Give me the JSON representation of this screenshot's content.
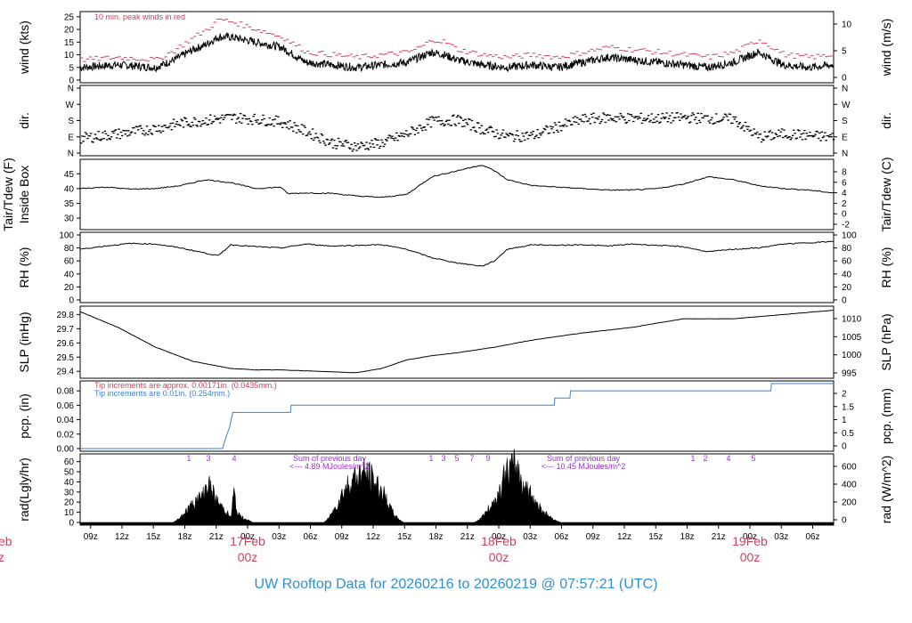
{
  "figure_title": "UW Rooftop Data for 20260216  to  20260219 @ 07:57:21  (UTC)",
  "colors": {
    "red": "#d0405a",
    "blue": "#3d7fcf",
    "purple": "#9a30d8",
    "footer": "#2f8fd4",
    "ink": "#000000"
  },
  "chart_data": [
    {
      "type": "line",
      "panel": "wind",
      "ylabel": "wind (kts)",
      "ylabel_right": "wind (m/s)",
      "ylim": [
        0,
        26
      ],
      "yticks": [
        0,
        5,
        10,
        15,
        20,
        25
      ],
      "yticks_right": [
        0,
        5,
        10
      ],
      "annotation": "10 min. peak winds in red",
      "x_unit": "hours since 16 Feb 08z",
      "series": [
        {
          "name": "wind",
          "color": "#000000",
          "x": [
            0,
            6,
            12,
            15,
            18,
            20,
            22,
            24,
            28,
            32,
            36,
            40,
            44,
            48,
            52,
            54,
            56,
            58,
            60,
            64,
            68,
            72,
            76,
            80,
            84,
            88,
            92,
            96,
            100,
            104,
            108,
            112,
            116,
            120
          ],
          "y": [
            5,
            6,
            5,
            8,
            12,
            14,
            17,
            17,
            15,
            13,
            7,
            6,
            5,
            6,
            7,
            9,
            11,
            10,
            8,
            6,
            5,
            6,
            5,
            7,
            9,
            8,
            7,
            6,
            5,
            7,
            11,
            6,
            5,
            6
          ]
        },
        {
          "name": "peak",
          "color": "#d0405a",
          "x": [
            0,
            6,
            12,
            15,
            18,
            20,
            22,
            24,
            28,
            32,
            36,
            40,
            44,
            48,
            52,
            54,
            56,
            58,
            60,
            64,
            68,
            72,
            76,
            80,
            84,
            88,
            92,
            96,
            100,
            104,
            108,
            112,
            116,
            120
          ],
          "y": [
            8,
            9,
            8,
            12,
            17,
            20,
            24,
            23,
            20,
            17,
            11,
            10,
            9,
            10,
            11,
            13,
            16,
            15,
            12,
            10,
            9,
            10,
            9,
            11,
            13,
            12,
            11,
            10,
            9,
            11,
            16,
            10,
            9,
            10
          ]
        }
      ]
    },
    {
      "type": "scatter",
      "panel": "dir",
      "ylabel": "dir.",
      "ylabel_right": "dir.",
      "yticks": [
        "N",
        "E",
        "S",
        "W",
        "N"
      ],
      "ylim": [
        0,
        360
      ],
      "series": [
        {
          "name": "dir",
          "color": "#000000",
          "x": [
            0,
            6,
            12,
            16,
            20,
            24,
            28,
            32,
            36,
            40,
            44,
            48,
            52,
            56,
            60,
            64,
            68,
            72,
            76,
            80,
            84,
            88,
            92,
            96,
            100,
            104,
            108,
            112,
            116,
            120
          ],
          "y": [
            85,
            110,
            140,
            170,
            185,
            200,
            190,
            175,
            120,
            60,
            40,
            60,
            110,
            180,
            185,
            135,
            95,
            100,
            150,
            190,
            200,
            195,
            195,
            200,
            195,
            190,
            90,
            110,
            100,
            90
          ]
        }
      ]
    },
    {
      "type": "line",
      "panel": "tair",
      "ylabel": "Tair/Tdew (F)",
      "ylabel2": "Inside Box",
      "ylabel_right": "Tair/Tdew (C)",
      "ylim": [
        27,
        49
      ],
      "yticks": [
        30,
        35,
        40,
        45
      ],
      "yticks_right": [
        -2,
        0,
        2,
        4,
        6,
        8
      ],
      "series": [
        {
          "name": "tair",
          "color": "#000000",
          "x": [
            0,
            4,
            8,
            12,
            16,
            20,
            24,
            28,
            32,
            33,
            36,
            40,
            44,
            48,
            52,
            56,
            60,
            64,
            66,
            68,
            72,
            76,
            80,
            84,
            88,
            92,
            96,
            100,
            104,
            108,
            112,
            116,
            120
          ],
          "y": [
            40,
            40.5,
            39.8,
            40,
            41,
            43,
            42,
            40,
            40.5,
            38.3,
            38.5,
            38.4,
            37.5,
            37,
            38,
            44,
            46,
            48,
            46,
            43,
            41,
            40.5,
            40,
            39.5,
            39.5,
            40,
            41.5,
            44,
            43,
            41,
            40,
            39.5,
            38.5
          ]
        }
      ]
    },
    {
      "type": "line",
      "panel": "rh",
      "ylabel": "RH (%)",
      "ylabel_right": "RH (%)",
      "ylim": [
        0,
        100
      ],
      "yticks": [
        0,
        20,
        40,
        60,
        80,
        100
      ],
      "yticks_right": [
        0,
        20,
        40,
        60,
        80,
        100
      ],
      "series": [
        {
          "name": "rh",
          "color": "#000000",
          "x": [
            0,
            4,
            8,
            12,
            16,
            20,
            22,
            24,
            28,
            32,
            36,
            40,
            44,
            48,
            52,
            56,
            60,
            64,
            66,
            68,
            72,
            76,
            80,
            84,
            88,
            92,
            96,
            100,
            104,
            108,
            112,
            116,
            120
          ],
          "y": [
            78,
            83,
            87,
            86,
            80,
            72,
            68,
            85,
            82,
            80,
            86,
            83,
            84,
            85,
            78,
            65,
            57,
            52,
            60,
            78,
            85,
            84,
            85,
            83,
            86,
            84,
            82,
            74,
            78,
            80,
            86,
            88,
            90
          ]
        }
      ]
    },
    {
      "type": "line",
      "panel": "slp",
      "ylabel": "SLP (inHg)",
      "ylabel_right": "SLP (hPa)",
      "ylim": [
        29.37,
        29.84
      ],
      "yticks": [
        29.4,
        29.5,
        29.6,
        29.7,
        29.8
      ],
      "yticks_right": [
        995,
        1000,
        1005,
        1010
      ],
      "series": [
        {
          "name": "slp",
          "color": "#000000",
          "x": [
            0,
            6,
            12,
            18,
            24,
            28,
            32,
            38,
            44,
            48,
            52,
            56,
            60,
            66,
            72,
            80,
            88,
            96,
            104,
            112,
            120
          ],
          "y": [
            29.82,
            29.71,
            29.57,
            29.47,
            29.42,
            29.41,
            29.41,
            29.4,
            29.39,
            29.42,
            29.48,
            29.51,
            29.53,
            29.57,
            29.62,
            29.67,
            29.71,
            29.77,
            29.77,
            29.8,
            29.83
          ]
        }
      ]
    },
    {
      "type": "line",
      "panel": "pcp",
      "ylabel": "pcp. (in)",
      "ylabel_right": "pcp. (mm)",
      "ylim": [
        0,
        0.09
      ],
      "yticks": [
        0.0,
        0.02,
        0.04,
        0.06,
        0.08
      ],
      "ytick_labels": [
        "0.00",
        "0.02",
        "0.04",
        "0.06",
        "0.08"
      ],
      "yticks_right": [
        0,
        0.5,
        1,
        1.5,
        2
      ],
      "annotations": [
        {
          "text": "Tip increments are approx. 0.00171in. (0.0435mm.)",
          "color": "#d0405a"
        },
        {
          "text": "Tip increments are 0.01in. (0.254mm.)",
          "color": "#3d7fcf"
        }
      ],
      "series": [
        {
          "name": "pcp",
          "color": "#3d7fcf",
          "x": [
            0,
            22.7,
            23.0,
            23.4,
            23.8,
            24.3,
            33.5,
            33.6,
            75.5,
            75.6,
            78.0,
            78.1,
            110.0,
            110.1,
            120
          ],
          "y": [
            0.0,
            0.0,
            0.01,
            0.02,
            0.03,
            0.05,
            0.05,
            0.06,
            0.06,
            0.07,
            0.07,
            0.08,
            0.08,
            0.09,
            0.09
          ]
        }
      ]
    },
    {
      "type": "area",
      "panel": "rad",
      "ylabel": "rad(Lgly/hr)",
      "ylabel_right": "rad (W/m^2)",
      "ylim": [
        0,
        65
      ],
      "yticks": [
        0,
        10,
        20,
        30,
        40,
        50,
        60
      ],
      "yticks_right": [
        0,
        200,
        400,
        600
      ],
      "hour_markers": [
        "1",
        "3",
        "4",
        "1",
        "3",
        "5",
        "7",
        "9",
        "1",
        "2",
        "4",
        "5"
      ],
      "annotations": [
        {
          "lines": [
            "Sum of previous day",
            "<--- 4.89 MJoules/m^2"
          ],
          "color": "#9a30d8"
        },
        {
          "lines": [
            "Sum of previous day",
            "<--- 10.45 MJoules/m^2"
          ],
          "color": "#9a30d8"
        }
      ],
      "series": [
        {
          "name": "rad",
          "color": "#000000",
          "x": [
            0,
            14.8,
            15.5,
            16.5,
            17.5,
            18.5,
            19.5,
            20.3,
            21.0,
            22.0,
            23.0,
            24.0,
            24.5,
            25.0,
            26.0,
            27.5,
            38.8,
            39.5,
            40.5,
            41.5,
            42.5,
            43.5,
            44.5,
            45.5,
            46.5,
            47.5,
            48.5,
            49.5,
            50.5,
            51.5,
            62.8,
            63.5,
            64.5,
            65.5,
            66.5,
            67.5,
            68.5,
            69.5,
            70.5,
            71.5,
            72.5,
            73.5,
            74.5,
            75.5,
            76.5,
            120
          ],
          "y": [
            0,
            0,
            3,
            10,
            18,
            25,
            30,
            46,
            35,
            22,
            15,
            5,
            35,
            10,
            5,
            0,
            0,
            4,
            15,
            30,
            42,
            50,
            55,
            57,
            50,
            42,
            30,
            15,
            5,
            0,
            0,
            3,
            10,
            20,
            30,
            52,
            62,
            64,
            45,
            35,
            25,
            15,
            8,
            3,
            0,
            0
          ]
        }
      ]
    }
  ],
  "x_axis": {
    "tick_labels": [
      "09z",
      "12z",
      "15z",
      "18z",
      "21z",
      "00z",
      "03z",
      "06z",
      "09z",
      "12z",
      "15z",
      "18z",
      "21z",
      "00z",
      "03z",
      "06z",
      "09z",
      "12z",
      "15z",
      "18z",
      "21z",
      "00z",
      "03z",
      "06z"
    ],
    "tick_hours": [
      1,
      4,
      7,
      10,
      13,
      16,
      19,
      22,
      25,
      28,
      31,
      34,
      37,
      40,
      43,
      46,
      49,
      52,
      55,
      58,
      61,
      64,
      67,
      70
    ],
    "day_labels": [
      {
        "date": "17Feb",
        "hour": "00z",
        "at": 16
      },
      {
        "date": "18Feb",
        "hour": "00z",
        "at": 40
      },
      {
        "date": "19Feb",
        "hour": "00z",
        "at": 64
      }
    ],
    "edge_label": {
      "date": "eb",
      "hour": "z"
    }
  }
}
